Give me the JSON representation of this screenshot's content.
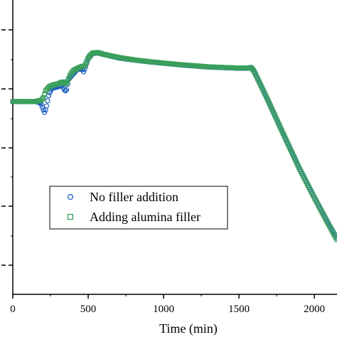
{
  "chart_data": {
    "type": "scatter",
    "xlabel": "Time (min)",
    "ylabel": "",
    "xlim": [
      0,
      2150
    ],
    "ylim": [
      0,
      1
    ],
    "x_ticks": [
      0,
      500,
      1000,
      1500,
      2000
    ],
    "x_tick_labels": [
      "0",
      "500",
      "1000",
      "1500",
      "2000"
    ],
    "legend_position": "lower-left",
    "series": [
      {
        "name": "No filler addition",
        "marker": "circle",
        "color": "#1f5fbf",
        "x": [
          0,
          150,
          185,
          200,
          210,
          220,
          240,
          260,
          300,
          330,
          340,
          355,
          370,
          400,
          430,
          460,
          470,
          480,
          500,
          530,
          560,
          600,
          700,
          800,
          900,
          1000,
          1100,
          1200,
          1300,
          1400,
          1500,
          1560,
          1580,
          1600,
          1700,
          1800,
          1900,
          2000,
          2100,
          2150
        ],
        "y": [
          0.655,
          0.655,
          0.65,
          0.63,
          0.618,
          0.63,
          0.68,
          0.7,
          0.705,
          0.71,
          0.695,
          0.69,
          0.73,
          0.748,
          0.765,
          0.765,
          0.755,
          0.77,
          0.8,
          0.818,
          0.82,
          0.815,
          0.803,
          0.796,
          0.79,
          0.785,
          0.78,
          0.776,
          0.772,
          0.77,
          0.768,
          0.768,
          0.772,
          0.76,
          0.652,
          0.54,
          0.43,
          0.33,
          0.235,
          0.19
        ]
      },
      {
        "name": "Adding alumina filler",
        "marker": "square",
        "color": "#3aa05a",
        "x": [
          0,
          150,
          190,
          205,
          215,
          240,
          270,
          300,
          330,
          345,
          360,
          380,
          400,
          430,
          460,
          475,
          485,
          500,
          530,
          560,
          600,
          700,
          800,
          900,
          1000,
          1100,
          1200,
          1300,
          1400,
          1500,
          1560,
          1580,
          1600,
          1700,
          1800,
          1900,
          2000,
          2100,
          2150
        ],
        "y": [
          0.655,
          0.655,
          0.66,
          0.67,
          0.69,
          0.705,
          0.712,
          0.715,
          0.722,
          0.715,
          0.72,
          0.745,
          0.76,
          0.768,
          0.775,
          0.775,
          0.785,
          0.805,
          0.82,
          0.822,
          0.816,
          0.805,
          0.797,
          0.791,
          0.786,
          0.781,
          0.777,
          0.773,
          0.771,
          0.769,
          0.769,
          0.771,
          0.758,
          0.65,
          0.538,
          0.428,
          0.328,
          0.232,
          0.185
        ]
      }
    ]
  }
}
